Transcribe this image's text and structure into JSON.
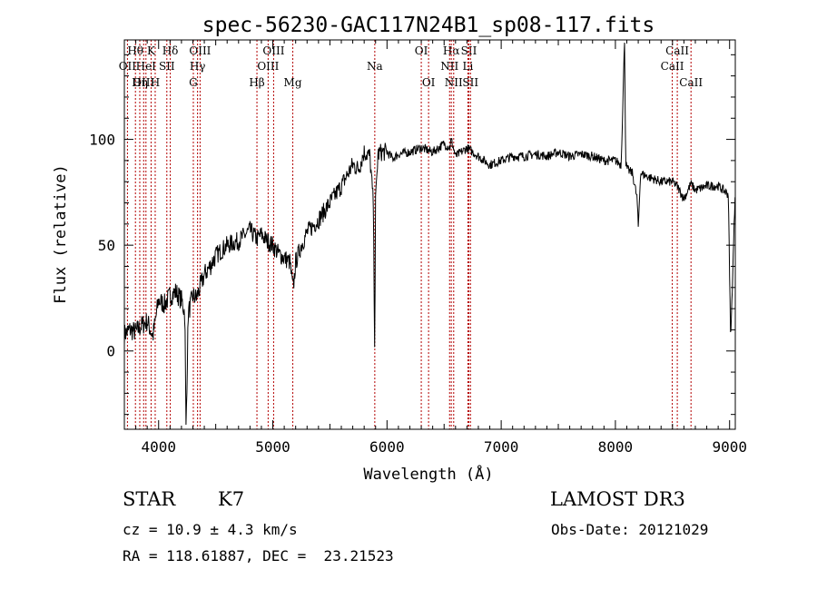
{
  "chart_data": {
    "type": "line",
    "title": "spec-56230-GAC117N24B1_sp08-117.fits",
    "xlabel": "Wavelength (Å)",
    "ylabel": "Flux (relative)",
    "xlim": [
      3700,
      9050
    ],
    "ylim": [
      -37,
      147
    ],
    "xticks": [
      4000,
      5000,
      6000,
      7000,
      8000,
      9000
    ],
    "yticks": [
      0,
      50,
      100
    ],
    "series": [
      {
        "x": [
          3700,
          3750,
          3800,
          3850,
          3900,
          3950,
          4000,
          4050,
          4100,
          4150,
          4200,
          4230,
          4240,
          4260,
          4300,
          4330,
          4350,
          4400,
          4450,
          4500,
          4600,
          4700,
          4800,
          4860,
          4900,
          4950,
          5000,
          5050,
          5100,
          5150,
          5170,
          5180,
          5200,
          5250,
          5300,
          5400,
          5500,
          5600,
          5700,
          5750,
          5800,
          5850,
          5880,
          5893,
          5900,
          5920,
          5950,
          6000,
          6050,
          6100,
          6200,
          6300,
          6400,
          6500,
          6550,
          6562,
          6600,
          6650,
          6700,
          6800,
          6900,
          7000,
          7100,
          7200,
          7300,
          7400,
          7500,
          7600,
          7700,
          7800,
          7900,
          8000,
          8050,
          8080,
          8090,
          8100,
          8150,
          8190,
          8200,
          8220,
          8300,
          8400,
          8500,
          8540,
          8600,
          8662,
          8700,
          8800,
          8900,
          8990,
          9000,
          9010,
          9050
        ],
        "y": [
          8,
          10,
          9,
          12,
          14,
          7,
          24,
          22,
          26,
          28,
          24,
          18,
          -37,
          18,
          26,
          25,
          28,
          36,
          40,
          45,
          50,
          52,
          57,
          53,
          55,
          52,
          50,
          46,
          44,
          42,
          32,
          30,
          42,
          50,
          56,
          62,
          70,
          78,
          88,
          86,
          94,
          92,
          70,
          0,
          70,
          93,
          94,
          94,
          91,
          93,
          94,
          96,
          94,
          98,
          96,
          100,
          92,
          94,
          96,
          92,
          88,
          90,
          92,
          92,
          93,
          92,
          94,
          92,
          93,
          92,
          90,
          90,
          88,
          147,
          90,
          86,
          84,
          72,
          58,
          84,
          82,
          80,
          80,
          78,
          72,
          79,
          76,
          78,
          78,
          74,
          35,
          5,
          77
        ]
      }
    ],
    "line_markers": [
      {
        "name": "Hθ",
        "x": 3797,
        "row": 0
      },
      {
        "name": "OII",
        "x": 3727,
        "row": 1
      },
      {
        "name": "OIII",
        "x": 3869,
        "row": 2
      },
      {
        "name": "K",
        "x": 3934,
        "row": 0
      },
      {
        "name": "HeI",
        "x": 3889,
        "row": 1
      },
      {
        "name": "Hη",
        "x": 3835,
        "row": 2
      },
      {
        "name": "SII",
        "x": 4072,
        "row": 1
      },
      {
        "name": "H",
        "x": 3970,
        "row": 2
      },
      {
        "name": "Hδ",
        "x": 4102,
        "row": 0
      },
      {
        "name": "OIII",
        "x": 4363,
        "row": 0
      },
      {
        "name": "Hγ",
        "x": 4341,
        "row": 1
      },
      {
        "name": "G",
        "x": 4304,
        "row": 2
      },
      {
        "name": "OIII",
        "x": 5007,
        "row": 0
      },
      {
        "name": "OIII",
        "x": 4959,
        "row": 1
      },
      {
        "name": "Hβ",
        "x": 4861,
        "row": 2
      },
      {
        "name": "Mg",
        "x": 5175,
        "row": 2
      },
      {
        "name": "Na",
        "x": 5893,
        "row": 1
      },
      {
        "name": "OI",
        "x": 6300,
        "row": 0
      },
      {
        "name": "OI",
        "x": 6364,
        "row": 2
      },
      {
        "name": "Hα",
        "x": 6563,
        "row": 0
      },
      {
        "name": "NII",
        "x": 6548,
        "row": 1
      },
      {
        "name": "NII",
        "x": 6584,
        "row": 2
      },
      {
        "name": "SII",
        "x": 6717,
        "row": 0
      },
      {
        "name": "Li",
        "x": 6708,
        "row": 1
      },
      {
        "name": "SII",
        "x": 6731,
        "row": 2
      },
      {
        "name": "CaII",
        "x": 8542,
        "row": 0
      },
      {
        "name": "CaII",
        "x": 8498,
        "row": 1
      },
      {
        "name": "CaII",
        "x": 8662,
        "row": 2
      }
    ],
    "marker_color": "#b30000",
    "line_color": "#000000"
  },
  "info": {
    "object_class": "STAR",
    "subclass": "K7",
    "survey": "LAMOST DR3",
    "redshift": "cz = 10.9 ± 4.3 km/s",
    "obs_date": "Obs-Date: 20121029",
    "coords": "RA = 118.61887, DEC =  23.21523"
  }
}
